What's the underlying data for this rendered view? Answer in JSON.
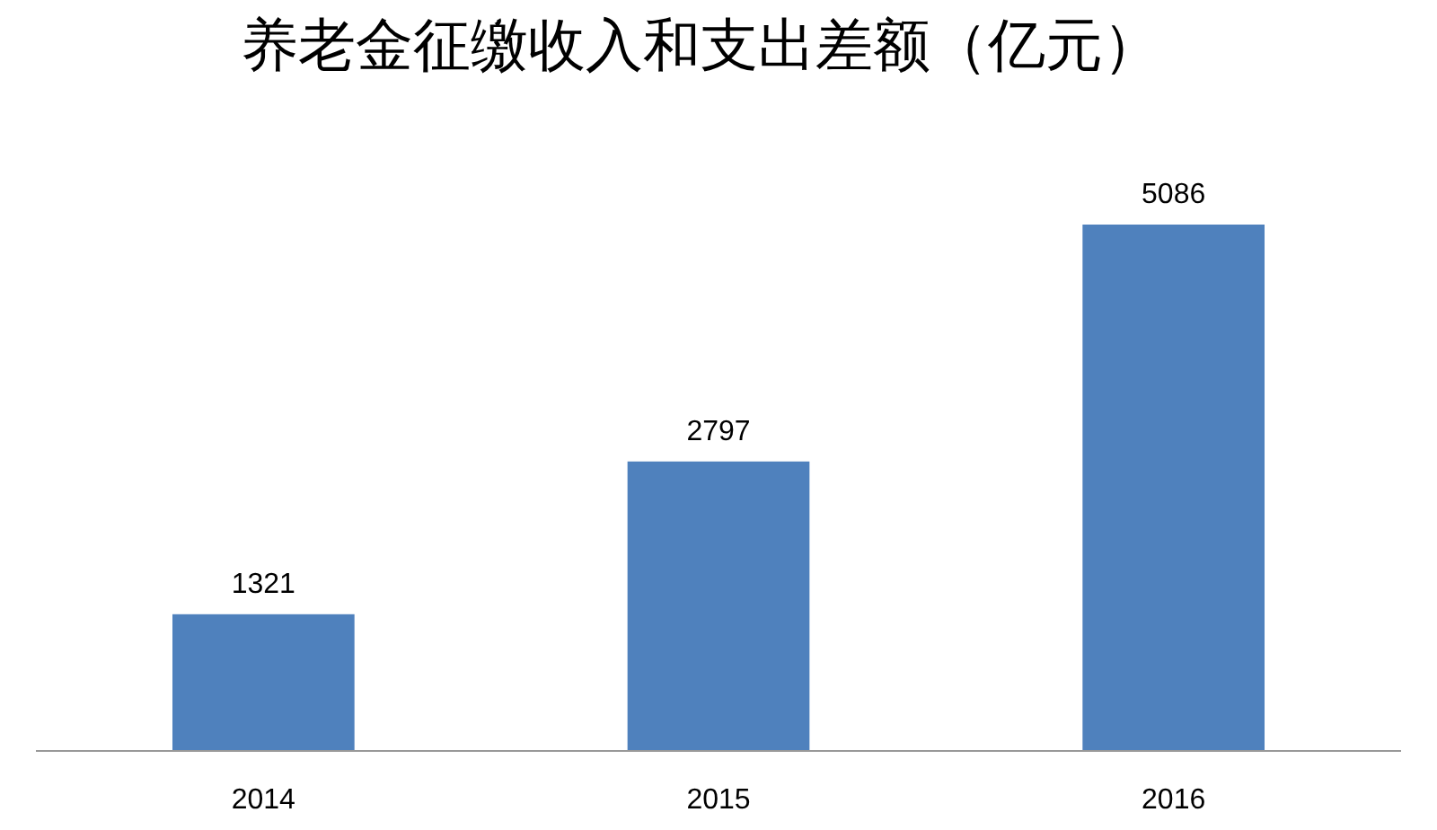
{
  "chart_data": {
    "type": "bar",
    "title": "养老金征缴收入和支出差额（亿元）",
    "categories": [
      "2014",
      "2015",
      "2016"
    ],
    "values": [
      1321,
      2797,
      5086
    ],
    "color": "#4f81bd",
    "data_labels": true
  }
}
